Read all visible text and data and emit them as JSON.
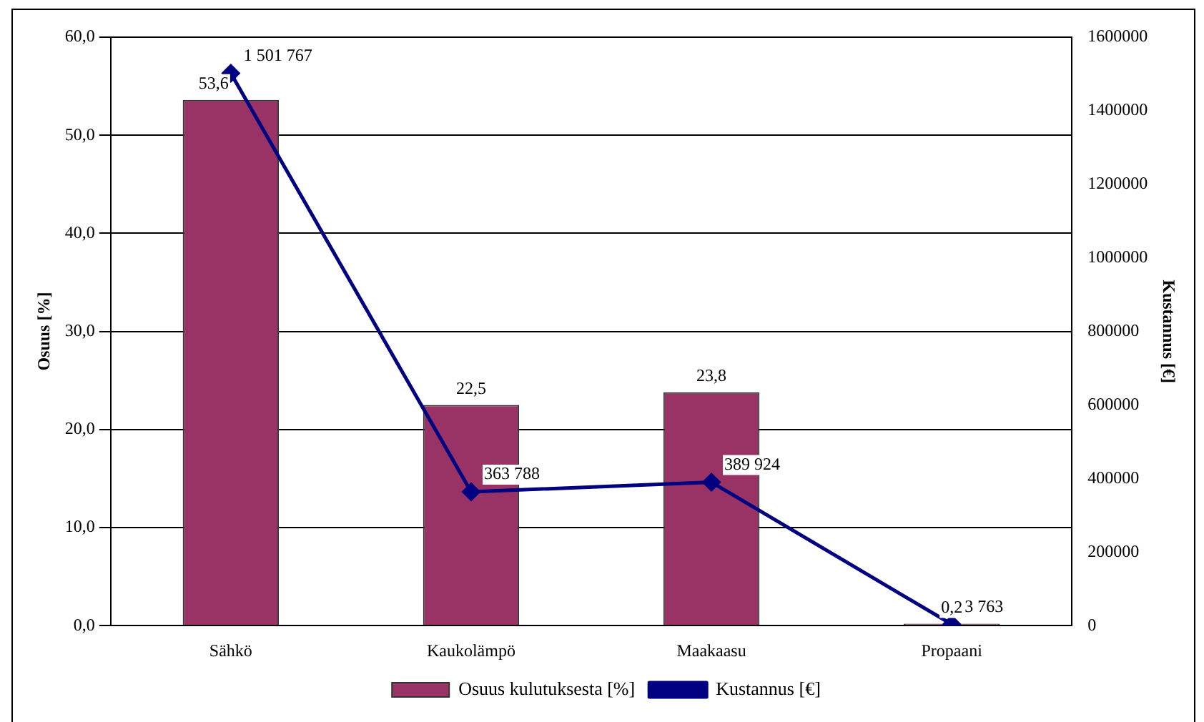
{
  "chart_data": {
    "type": "bar",
    "categories": [
      "Sähkö",
      "Kaukolämpö",
      "Maakaasu",
      "Propaani"
    ],
    "series": [
      {
        "name": "Osuus kulutuksesta [%]",
        "color": "#993366",
        "values": [
          53.6,
          22.5,
          23.8,
          0.2
        ],
        "value_labels": [
          "53,6",
          "22,5",
          "23,8",
          "0,2"
        ]
      },
      {
        "name": "Kustannus [€]",
        "type": "line",
        "axis": "y2",
        "color": "#000080",
        "values": [
          1501767,
          363788,
          389924,
          3763
        ],
        "value_labels": [
          "1 501 767",
          "363 788",
          "389 924",
          "3 763"
        ]
      }
    ],
    "ylabel": "Osuus [%]",
    "y2label": "Kustannus [€]",
    "ylim": [
      0,
      60
    ],
    "yticks": [
      {
        "value": 0,
        "label": "0,0"
      },
      {
        "value": 10,
        "label": "10,0"
      },
      {
        "value": 20,
        "label": "20,0"
      },
      {
        "value": 30,
        "label": "30,0"
      },
      {
        "value": 40,
        "label": "40,0"
      },
      {
        "value": 50,
        "label": "50,0"
      },
      {
        "value": 60,
        "label": "60,0"
      }
    ],
    "y2lim": [
      0,
      1600000
    ],
    "y2ticks": [
      0,
      200000,
      400000,
      600000,
      800000,
      1000000,
      1200000,
      1400000,
      1600000
    ],
    "grid": "y",
    "legend": "bottom",
    "marker": "diamond",
    "line_style": "solid"
  }
}
